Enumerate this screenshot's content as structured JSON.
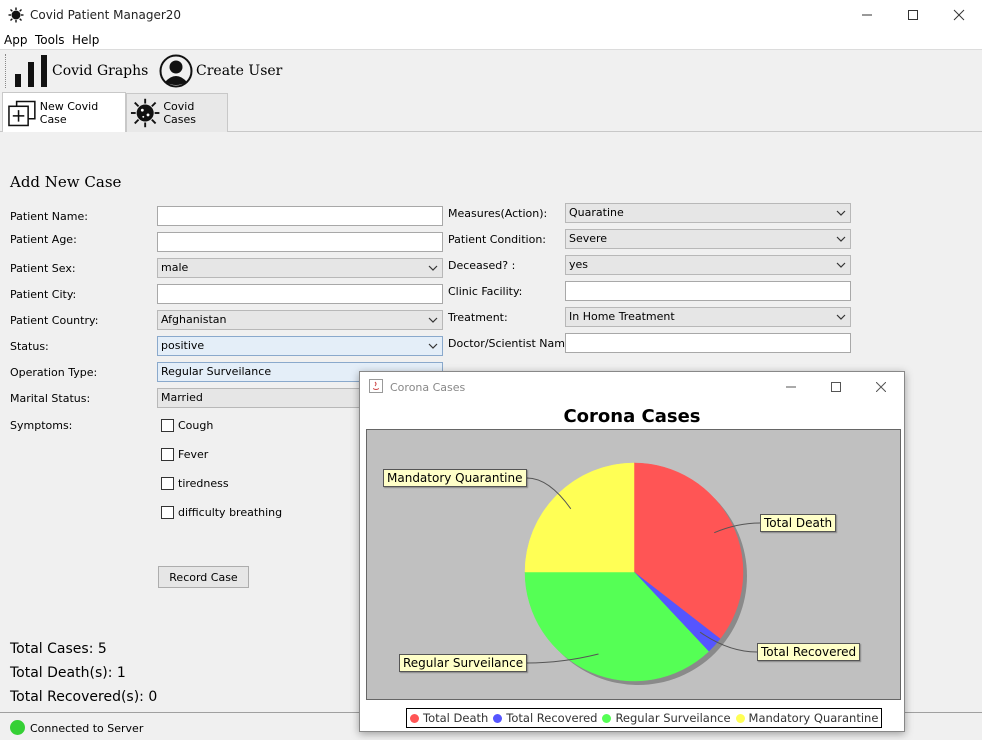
{
  "window": {
    "title": "Covid Patient Manager20",
    "controls": {
      "minimize": "—",
      "maximize": "☐",
      "close": "✕"
    }
  },
  "menu": [
    "App",
    "Tools",
    "Help"
  ],
  "toolbar": {
    "graphs_label": "Covid Graphs",
    "create_user_label": "Create User"
  },
  "tabs": [
    {
      "label": "New Covid Case",
      "active": true
    },
    {
      "label": "Covid Cases",
      "active": false
    }
  ],
  "form": {
    "heading": "Add New Case",
    "left": {
      "patient_name": {
        "label": "Patient Name:",
        "value": ""
      },
      "patient_age": {
        "label": "Patient Age:",
        "value": ""
      },
      "patient_sex": {
        "label": "Patient Sex:",
        "value": "male"
      },
      "patient_city": {
        "label": "Patient City:",
        "value": ""
      },
      "patient_country": {
        "label": "Patient Country:",
        "value": "Afghanistan"
      },
      "status": {
        "label": "Status:",
        "value": "positive"
      },
      "operation_type": {
        "label": "Operation Type:",
        "value": "Regular Surveilance"
      },
      "marital_status": {
        "label": "Marital Status:",
        "value": "Married"
      },
      "symptoms": {
        "label": "Symptoms:"
      }
    },
    "symptoms": [
      "Cough",
      "Fever",
      "tiredness",
      "difficulty breathing"
    ],
    "right": {
      "measures": {
        "label": "Measures(Action):",
        "value": "Quaratine"
      },
      "condition": {
        "label": "Patient Condition:",
        "value": "Severe"
      },
      "deceased": {
        "label": "Deceased? :",
        "value": "yes"
      },
      "clinic": {
        "label": "Clinic Facility:",
        "value": ""
      },
      "treatment": {
        "label": "Treatment:",
        "value": "In Home Treatment"
      },
      "doctor": {
        "label": "Doctor/Scientist Name:",
        "value": ""
      }
    },
    "record_button": "Record Case"
  },
  "stats": {
    "total_cases": "Total Cases: 5",
    "total_deaths": "Total Death(s): 1",
    "total_recovered": "Total Recovered(s): 0"
  },
  "status_bar": {
    "text": "Connected to Server",
    "color": "#35d035"
  },
  "chart_window": {
    "title": "Corona Cases",
    "controls": {
      "minimize": "—",
      "maximize": "☐",
      "close": "✕"
    }
  },
  "chart_data": {
    "type": "pie",
    "title": "Corona Cases",
    "slices": [
      {
        "name": "Total Death",
        "value": 35.5,
        "color": "#ff5555"
      },
      {
        "name": "Total Recovered",
        "value": 2.5,
        "color": "#5555ff"
      },
      {
        "name": "Regular Surveilance",
        "value": 37,
        "color": "#55ff55"
      },
      {
        "name": "Mandatory Quarantine",
        "value": 25,
        "color": "#ffff55"
      }
    ],
    "legend_placement": "bottom",
    "background": "#c0c0c0"
  }
}
